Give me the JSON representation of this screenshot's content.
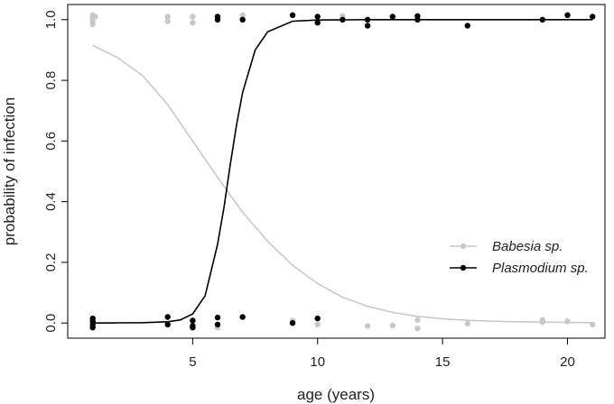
{
  "chart_data": {
    "type": "scatter",
    "title": "",
    "xlabel": "age (years)",
    "ylabel": "probability of infection",
    "xlim": [
      0.0,
      21.5
    ],
    "ylim": [
      -0.05,
      1.05
    ],
    "x_ticks": [
      5,
      10,
      15,
      20
    ],
    "y_ticks": [
      0.0,
      0.2,
      0.4,
      0.6,
      0.8,
      1.0
    ],
    "x_tick_labels": [
      "5",
      "10",
      "15",
      "20"
    ],
    "y_tick_labels": [
      "0.0",
      "0.2",
      "0.4",
      "0.6",
      "0.8",
      "1.0"
    ],
    "grid": false,
    "legend_position": "lower-right",
    "series": [
      {
        "name": "Babesia sp.",
        "color": "#c8c8c8",
        "points": [
          [
            1.0,
            1.015
          ],
          [
            1.0,
            1.005
          ],
          [
            1.0,
            0.995
          ],
          [
            1.0,
            0.985
          ],
          [
            1.1,
            1.01
          ],
          [
            4.0,
            1.01
          ],
          [
            4.0,
            0.995
          ],
          [
            5.0,
            1.01
          ],
          [
            5.0,
            0.99
          ],
          [
            6.0,
            1.005
          ],
          [
            7.0,
            1.015
          ],
          [
            7.0,
            1.0
          ],
          [
            11.0,
            1.012
          ],
          [
            1.0,
            0.01
          ],
          [
            1.0,
            -0.005
          ],
          [
            4.0,
            -0.005
          ],
          [
            5.0,
            0.005
          ],
          [
            6.0,
            -0.015
          ],
          [
            9.0,
            0.008
          ],
          [
            10.0,
            -0.005
          ],
          [
            12.0,
            -0.01
          ],
          [
            13.0,
            -0.008
          ],
          [
            14.0,
            0.01
          ],
          [
            14.0,
            -0.018
          ],
          [
            16.0,
            -0.002
          ],
          [
            19.0,
            0.01
          ],
          [
            19.0,
            0.003
          ],
          [
            20.0,
            0.005
          ],
          [
            21.0,
            -0.005
          ]
        ],
        "curve": [
          [
            1.0,
            0.915
          ],
          [
            2.0,
            0.875
          ],
          [
            3.0,
            0.815
          ],
          [
            4.0,
            0.72
          ],
          [
            5.0,
            0.6
          ],
          [
            6.0,
            0.48
          ],
          [
            7.0,
            0.365
          ],
          [
            8.0,
            0.27
          ],
          [
            9.0,
            0.19
          ],
          [
            10.0,
            0.13
          ],
          [
            11.0,
            0.085
          ],
          [
            12.0,
            0.055
          ],
          [
            13.0,
            0.035
          ],
          [
            14.0,
            0.022
          ],
          [
            15.0,
            0.014
          ],
          [
            16.0,
            0.009
          ],
          [
            17.0,
            0.006
          ],
          [
            18.0,
            0.004
          ],
          [
            19.0,
            0.003
          ],
          [
            20.0,
            0.002
          ],
          [
            21.0,
            0.001
          ]
        ]
      },
      {
        "name": "Plasmodium sp.",
        "color": "#000000",
        "points": [
          [
            6.0,
            1.01
          ],
          [
            6.0,
            1.0
          ],
          [
            7.0,
            1.0
          ],
          [
            9.0,
            1.015
          ],
          [
            10.0,
            1.01
          ],
          [
            10.0,
            0.99
          ],
          [
            11.0,
            1.0
          ],
          [
            12.0,
            1.0
          ],
          [
            12.0,
            0.98
          ],
          [
            13.0,
            1.01
          ],
          [
            14.0,
            1.012
          ],
          [
            14.0,
            1.0
          ],
          [
            16.0,
            0.98
          ],
          [
            19.0,
            1.0
          ],
          [
            20.0,
            1.015
          ],
          [
            21.0,
            1.01
          ],
          [
            1.0,
            0.015
          ],
          [
            1.0,
            0.005
          ],
          [
            1.0,
            -0.005
          ],
          [
            1.0,
            -0.015
          ],
          [
            4.0,
            0.02
          ],
          [
            4.0,
            -0.005
          ],
          [
            5.0,
            0.008
          ],
          [
            5.0,
            -0.01
          ],
          [
            5.0,
            -0.015
          ],
          [
            6.0,
            0.018
          ],
          [
            6.0,
            -0.005
          ],
          [
            7.0,
            0.02
          ],
          [
            9.0,
            0.0
          ],
          [
            10.0,
            0.015
          ]
        ],
        "curve": [
          [
            1.0,
            0.0
          ],
          [
            2.0,
            0.0005
          ],
          [
            3.0,
            0.001
          ],
          [
            4.0,
            0.004
          ],
          [
            4.5,
            0.01
          ],
          [
            5.0,
            0.03
          ],
          [
            5.5,
            0.09
          ],
          [
            6.0,
            0.26
          ],
          [
            6.25,
            0.38
          ],
          [
            6.5,
            0.52
          ],
          [
            6.75,
            0.65
          ],
          [
            7.0,
            0.76
          ],
          [
            7.5,
            0.9
          ],
          [
            8.0,
            0.96
          ],
          [
            9.0,
            0.995
          ],
          [
            10.0,
            0.999
          ],
          [
            12.0,
            1.0
          ],
          [
            15.0,
            1.0
          ],
          [
            21.0,
            1.0
          ]
        ]
      }
    ]
  }
}
